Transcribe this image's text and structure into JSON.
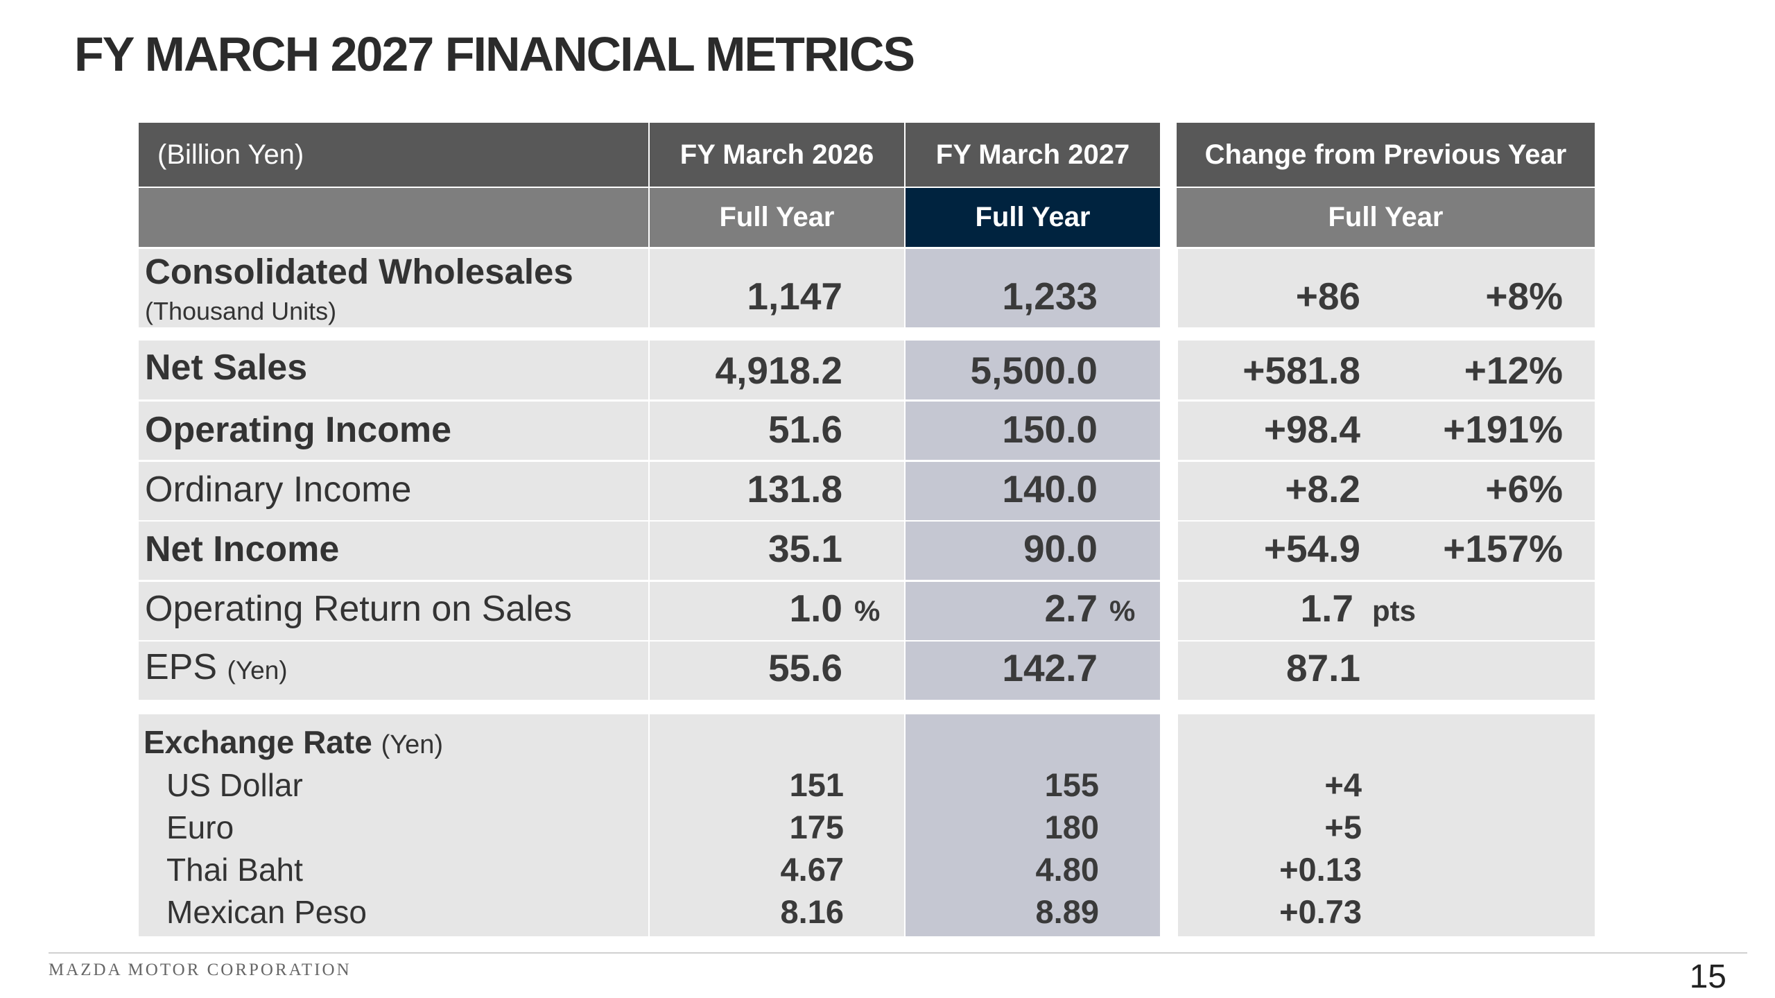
{
  "title": "FY MARCH 2027 FINANCIAL METRICS",
  "header": {
    "unit_label": "(Billion Yen)",
    "col1": "FY March 2026",
    "col2": "FY March 2027",
    "col3": "Change from Previous Year",
    "sub1": "Full Year",
    "sub2": "Full Year",
    "sub3": "Full Year"
  },
  "wholesales": {
    "label": "Consolidated Wholesales",
    "sublabel": "(Thousand Units)",
    "fy2026": "1,147",
    "fy2027": "1,233",
    "change": "+86",
    "change_pct": "+8%"
  },
  "rows": [
    {
      "label": "Net Sales",
      "fy2026": "4,918.2",
      "fy2027": "5,500.0",
      "change": "+581.8",
      "change_pct": "+12%"
    },
    {
      "label": "Operating Income",
      "fy2026": "51.6",
      "fy2027": "150.0",
      "change": "+98.4",
      "change_pct": "+191%"
    },
    {
      "label": "Ordinary Income",
      "fy2026": "131.8",
      "fy2027": "140.0",
      "change": "+8.2",
      "change_pct": "+6%"
    },
    {
      "label": "Net Income",
      "fy2026": "35.1",
      "fy2027": "90.0",
      "change": "+54.9",
      "change_pct": "+157%"
    },
    {
      "label": "Operating Return on Sales",
      "fy2026": "1.0",
      "fy2026_unit": "%",
      "fy2027": "2.7",
      "fy2027_unit": "%",
      "change": "1.7",
      "change_unit": "pts"
    },
    {
      "label": "EPS",
      "label_sub": "(Yen)",
      "fy2026": "55.6",
      "fy2027": "142.7",
      "change": "87.1"
    }
  ],
  "exchange": {
    "label": "Exchange Rate",
    "label_sub": "(Yen)",
    "items": [
      {
        "name": "US Dollar",
        "fy2026": "151",
        "fy2027": "155",
        "change": "+4"
      },
      {
        "name": "Euro",
        "fy2026": "175",
        "fy2027": "180",
        "change": "+5"
      },
      {
        "name": "Thai Baht",
        "fy2026": "4.67",
        "fy2027": "4.80",
        "change": "+0.13"
      },
      {
        "name": "Mexican Peso",
        "fy2026": "8.16",
        "fy2027": "8.89",
        "change": "+0.73"
      }
    ]
  },
  "footer": {
    "brand": "MAZDA MOTOR CORPORATION",
    "page": "15"
  },
  "colors": {
    "header_dark": "#585858",
    "header_mid": "#7e7e7e",
    "header_navy": "#00233f",
    "row_light": "#e6e6e6",
    "row_highlight": "#c5c7d2"
  }
}
